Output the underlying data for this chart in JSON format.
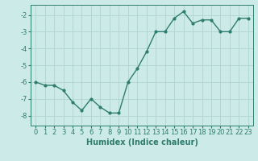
{
  "x": [
    0,
    1,
    2,
    3,
    4,
    5,
    6,
    7,
    8,
    9,
    10,
    11,
    12,
    13,
    14,
    15,
    16,
    17,
    18,
    19,
    20,
    21,
    22,
    23
  ],
  "y": [
    -6.0,
    -6.2,
    -6.2,
    -6.5,
    -7.2,
    -7.7,
    -7.0,
    -7.5,
    -7.85,
    -7.85,
    -6.0,
    -5.2,
    -4.2,
    -3.0,
    -3.0,
    -2.2,
    -1.8,
    -2.5,
    -2.3,
    -2.3,
    -3.0,
    -3.0,
    -2.2,
    -2.2
  ],
  "line_color": "#2e7d6e",
  "marker": "o",
  "marker_size": 2,
  "line_width": 1.0,
  "bg_color": "#cceae7",
  "grid_color": "#b0d4d0",
  "xlabel": "Humidex (Indice chaleur)",
  "xlabel_fontsize": 7,
  "tick_fontsize": 6,
  "xlim": [
    -0.5,
    23.5
  ],
  "ylim": [
    -8.6,
    -1.4
  ],
  "yticks": [
    -8,
    -7,
    -6,
    -5,
    -4,
    -3,
    -2
  ],
  "xticks": [
    0,
    1,
    2,
    3,
    4,
    5,
    6,
    7,
    8,
    9,
    10,
    11,
    12,
    13,
    14,
    15,
    16,
    17,
    18,
    19,
    20,
    21,
    22,
    23
  ]
}
